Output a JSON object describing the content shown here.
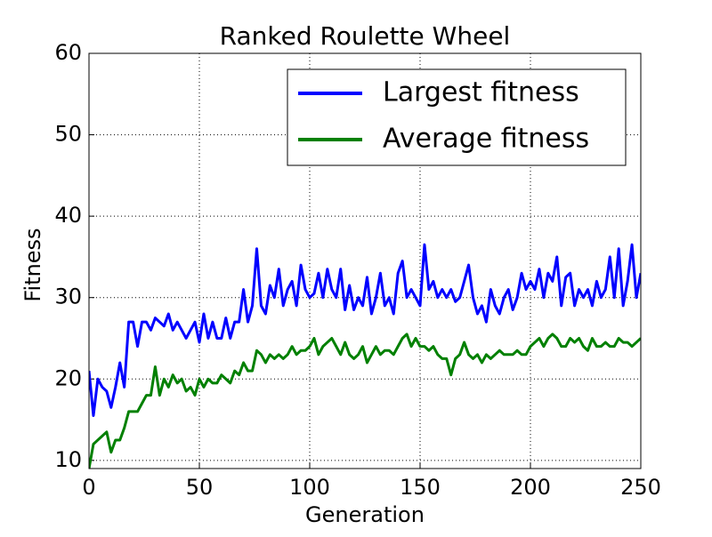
{
  "chart_data": {
    "type": "line",
    "title": "Ranked Roulette Wheel",
    "xlabel": "Generation",
    "ylabel": "Fitness",
    "x": [
      0,
      2,
      4,
      6,
      8,
      10,
      12,
      14,
      16,
      18,
      20,
      22,
      24,
      26,
      28,
      30,
      32,
      34,
      36,
      38,
      40,
      42,
      44,
      46,
      48,
      50,
      52,
      54,
      56,
      58,
      60,
      62,
      64,
      66,
      68,
      70,
      72,
      74,
      76,
      78,
      80,
      82,
      84,
      86,
      88,
      90,
      92,
      94,
      96,
      98,
      100,
      102,
      104,
      106,
      108,
      110,
      112,
      114,
      116,
      118,
      120,
      122,
      124,
      126,
      128,
      130,
      132,
      134,
      136,
      138,
      140,
      142,
      144,
      146,
      148,
      150,
      152,
      154,
      156,
      158,
      160,
      162,
      164,
      166,
      168,
      170,
      172,
      174,
      176,
      178,
      180,
      182,
      184,
      186,
      188,
      190,
      192,
      194,
      196,
      198,
      200,
      202,
      204,
      206,
      208,
      210,
      212,
      214,
      216,
      218,
      220,
      222,
      224,
      226,
      228,
      230,
      232,
      234,
      236,
      238,
      240,
      242,
      244,
      246,
      248,
      250
    ],
    "series": [
      {
        "name": "Largest fitness",
        "color": "#0000ff",
        "values": [
          21,
          15.5,
          20,
          19,
          18.5,
          16.5,
          19,
          22,
          19,
          27,
          27,
          24,
          27,
          27,
          26,
          27.5,
          27,
          26.5,
          28,
          26,
          27,
          26,
          25,
          26,
          27,
          24.5,
          28,
          25,
          27,
          25,
          25,
          27.5,
          25,
          27,
          27,
          31,
          27,
          29,
          36,
          29,
          28,
          31.5,
          30,
          33.5,
          29,
          31,
          32,
          29,
          34,
          31,
          30,
          30.5,
          33,
          30,
          33.5,
          31,
          30,
          33.5,
          28.5,
          31.5,
          28.5,
          30,
          29,
          32.5,
          28,
          30,
          33,
          29,
          30,
          28,
          33,
          34.5,
          30,
          31,
          30,
          29,
          36.5,
          31,
          32,
          30,
          31,
          30,
          31,
          29.5,
          30,
          32,
          34,
          30,
          28,
          29,
          27,
          31,
          29,
          28,
          30,
          31,
          28.5,
          30,
          33,
          31,
          32,
          31,
          33.5,
          30,
          33,
          32,
          35,
          29,
          32.5,
          33,
          29,
          31,
          30,
          31,
          29,
          32,
          30,
          31,
          35,
          30,
          36,
          29,
          32,
          36.5,
          30,
          33
        ]
      },
      {
        "name": "Average fitness",
        "color": "#008000",
        "values": [
          9,
          12,
          12.5,
          13,
          13.5,
          11,
          12.5,
          12.5,
          14,
          16,
          16,
          16,
          17,
          18,
          18,
          21.5,
          18,
          20,
          19,
          20.5,
          19.5,
          20,
          18.5,
          19,
          18,
          20,
          19,
          20,
          19.5,
          19.5,
          20.5,
          20,
          19.5,
          21,
          20.5,
          22,
          21,
          21,
          23.5,
          23,
          22,
          23,
          22.5,
          23,
          22.5,
          23,
          24,
          23,
          23.5,
          23.5,
          24,
          25,
          23,
          24,
          24.5,
          25,
          24,
          23,
          24.5,
          23,
          22.5,
          23,
          24,
          22,
          23,
          24,
          23,
          23.5,
          23.5,
          23,
          24,
          25,
          25.5,
          24,
          25,
          24,
          24,
          23.5,
          24,
          23,
          22.5,
          22.5,
          20.5,
          22.5,
          23,
          24.5,
          23,
          22.5,
          23,
          22,
          23,
          22.5,
          23,
          23.5,
          23,
          23,
          23,
          23.5,
          23,
          23,
          24,
          24.5,
          25,
          24,
          25,
          25.5,
          25,
          24,
          24,
          25,
          24.5,
          25,
          24,
          23.5,
          25,
          24,
          24,
          24.5,
          24,
          24,
          25,
          24.5,
          24.5,
          24,
          24.5,
          25
        ]
      }
    ],
    "xlim": [
      0,
      250
    ],
    "xticks": [
      0,
      50,
      100,
      150,
      200,
      250
    ],
    "ylim": [
      9,
      60
    ],
    "yticks": [
      10,
      20,
      30,
      40,
      50,
      60
    ],
    "grid": true,
    "legend": "upper right"
  }
}
